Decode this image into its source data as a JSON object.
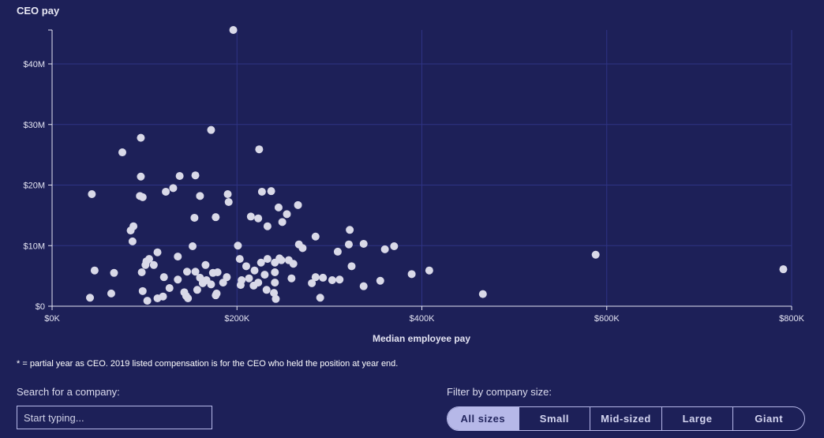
{
  "chart_data": {
    "type": "scatter",
    "title": "CEO pay",
    "xlabel": "Median employee pay",
    "ylabel": "CEO pay",
    "xlim": [
      0,
      800
    ],
    "ylim": [
      0,
      45.6
    ],
    "x_unit": "$K",
    "y_unit": "$M",
    "grid": true,
    "x_ticks": [
      "$0K",
      "$200K",
      "$400K",
      "$600K",
      "$800K"
    ],
    "x_tick_values": [
      0,
      200,
      400,
      600,
      800
    ],
    "y_ticks": [
      "$0",
      "$10M",
      "$20M",
      "$30M",
      "$40M"
    ],
    "y_tick_values": [
      0,
      10,
      20,
      30,
      40
    ],
    "points": [
      [
        196,
        45.6
      ],
      [
        76,
        25.4
      ],
      [
        96,
        27.8
      ],
      [
        172,
        29.1
      ],
      [
        224,
        25.9
      ],
      [
        43,
        18.5
      ],
      [
        96,
        21.4
      ],
      [
        95,
        18.2
      ],
      [
        98,
        18
      ],
      [
        138,
        21.5
      ],
      [
        155,
        21.6
      ],
      [
        131,
        19.5
      ],
      [
        123,
        18.9
      ],
      [
        160,
        18.2
      ],
      [
        190,
        18.5
      ],
      [
        191,
        17.2
      ],
      [
        227,
        18.9
      ],
      [
        237,
        19
      ],
      [
        88,
        13.2
      ],
      [
        85,
        12.5
      ],
      [
        87,
        10.7
      ],
      [
        154,
        14.6
      ],
      [
        177,
        14.7
      ],
      [
        215,
        14.8
      ],
      [
        223,
        14.5
      ],
      [
        245,
        16.3
      ],
      [
        254,
        15.2
      ],
      [
        266,
        16.7
      ],
      [
        249,
        13.9
      ],
      [
        233,
        13.2
      ],
      [
        152,
        9.9
      ],
      [
        201,
        10
      ],
      [
        285,
        11.5
      ],
      [
        322,
        12.6
      ],
      [
        267,
        10.2
      ],
      [
        271,
        9.6
      ],
      [
        114,
        8.9
      ],
      [
        136,
        8.2
      ],
      [
        105,
        7.8
      ],
      [
        102,
        7.4
      ],
      [
        101,
        6.8
      ],
      [
        110,
        6.8
      ],
      [
        203,
        7.8
      ],
      [
        233,
        7.8
      ],
      [
        246,
        7.9
      ],
      [
        248,
        7.6
      ],
      [
        256,
        7.6
      ],
      [
        241,
        7.2
      ],
      [
        226,
        7.2
      ],
      [
        210,
        6.6
      ],
      [
        166,
        6.8
      ],
      [
        261,
        7
      ],
      [
        309,
        9
      ],
      [
        321,
        10.2
      ],
      [
        337,
        10.3
      ],
      [
        360,
        9.4
      ],
      [
        370,
        9.9
      ],
      [
        588,
        8.5
      ],
      [
        791,
        6.1
      ],
      [
        324,
        6.6
      ],
      [
        46,
        5.9
      ],
      [
        67,
        5.5
      ],
      [
        97,
        5.6
      ],
      [
        121,
        4.8
      ],
      [
        136,
        4.4
      ],
      [
        146,
        5.7
      ],
      [
        155,
        5.7
      ],
      [
        174,
        5.5
      ],
      [
        179,
        5.6
      ],
      [
        189,
        4.8
      ],
      [
        205,
        4.3
      ],
      [
        213,
        4.6
      ],
      [
        219,
        5.9
      ],
      [
        230,
        5.2
      ],
      [
        241,
        5.6
      ],
      [
        259,
        4.6
      ],
      [
        285,
        4.8
      ],
      [
        293,
        4.7
      ],
      [
        303,
        4.3
      ],
      [
        311,
        4.4
      ],
      [
        281,
        3.8
      ],
      [
        337,
        3.3
      ],
      [
        355,
        4.2
      ],
      [
        389,
        5.3
      ],
      [
        408,
        5.9
      ],
      [
        466,
        2
      ],
      [
        41,
        1.4
      ],
      [
        64,
        2.1
      ],
      [
        98,
        2.5
      ],
      [
        103,
        0.9
      ],
      [
        114,
        1.3
      ],
      [
        120,
        1.6
      ],
      [
        127,
        3
      ],
      [
        145,
        1.7
      ],
      [
        147,
        1.3
      ],
      [
        157,
        2.7
      ],
      [
        163,
        3.8
      ],
      [
        172,
        3.6
      ],
      [
        178,
        2.1
      ],
      [
        185,
        3.9
      ],
      [
        204,
        3.5
      ],
      [
        218,
        3.4
      ],
      [
        223,
        3.9
      ],
      [
        232,
        2.7
      ],
      [
        241,
        3.9
      ],
      [
        240,
        2.2
      ],
      [
        242,
        1.2
      ],
      [
        290,
        1.4
      ],
      [
        160,
        4.7
      ],
      [
        167,
        4.3
      ],
      [
        143,
        2.3
      ],
      [
        177,
        1.8
      ]
    ]
  },
  "colors": {
    "background": "#1d2058",
    "grid": "#2f3384",
    "point": "#d9d9e8",
    "axis": "#e4e4f2",
    "accent": "#b6b8e8"
  },
  "note": "* = partial year as CEO. 2019 listed compensation is for the CEO who held the position at year end.",
  "search": {
    "label": "Search for a company:",
    "placeholder": "Start typing..."
  },
  "filter": {
    "label": "Filter by company size:",
    "options": [
      "All sizes",
      "Small",
      "Mid-sized",
      "Large",
      "Giant"
    ],
    "selected": "All sizes"
  }
}
